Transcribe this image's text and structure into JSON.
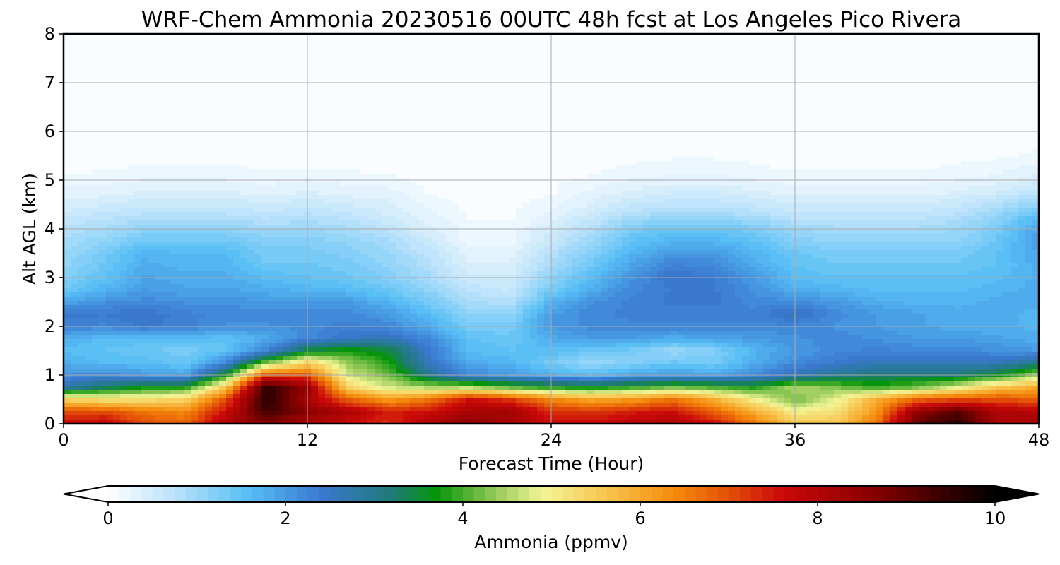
{
  "chart_data": {
    "type": "heatmap",
    "title": "WRF-Chem Ammonia  20230516 00UTC 48h fcst at Los Angeles Pico Rivera",
    "xlabel": "Forecast Time (Hour)",
    "ylabel": "Alt AGL (km)",
    "xlim": [
      0,
      48
    ],
    "ylim": [
      0,
      8
    ],
    "x_ticks": [
      "0",
      "12",
      "24",
      "36",
      "48"
    ],
    "y_ticks": [
      "0",
      "1",
      "2",
      "3",
      "4",
      "5",
      "6",
      "7",
      "8"
    ],
    "grid": true,
    "colorbar": {
      "label": "Ammonia  (ppmv)",
      "range": [
        0,
        10
      ],
      "ticks": [
        "0",
        "2",
        "4",
        "6",
        "8",
        "10"
      ],
      "extend": "both",
      "stops": [
        {
          "value": 0,
          "color": "#ffffff"
        },
        {
          "value": 0.8,
          "color": "#b4e0fa"
        },
        {
          "value": 1.6,
          "color": "#56bdf5"
        },
        {
          "value": 2.4,
          "color": "#3a78d0"
        },
        {
          "value": 3.2,
          "color": "#1f7a78"
        },
        {
          "value": 3.7,
          "color": "#06950a"
        },
        {
          "value": 4.4,
          "color": "#9ccc5c"
        },
        {
          "value": 4.9,
          "color": "#f3f596"
        },
        {
          "value": 5.6,
          "color": "#f8c550"
        },
        {
          "value": 6.4,
          "color": "#f58a0a"
        },
        {
          "value": 7.0,
          "color": "#e24f08"
        },
        {
          "value": 7.6,
          "color": "#cb0909"
        },
        {
          "value": 8.6,
          "color": "#8a0000"
        },
        {
          "value": 9.4,
          "color": "#3a0000"
        },
        {
          "value": 10,
          "color": "#000000"
        }
      ]
    },
    "times": [
      0,
      2,
      4,
      6,
      8,
      10,
      12,
      14,
      16,
      18,
      20,
      22,
      24,
      26,
      28,
      30,
      32,
      34,
      36,
      38,
      40,
      42,
      44,
      46,
      48
    ],
    "altitudes": [
      0,
      0.25,
      0.5,
      0.75,
      1.0,
      1.25,
      1.5,
      1.75,
      2.0,
      2.25,
      2.5,
      2.75,
      3.0,
      3.25,
      3.5,
      3.75,
      4.0,
      4.25,
      4.5,
      4.75,
      5.0,
      5.25,
      5.5,
      6.0,
      6.5,
      7.0,
      7.5,
      8.0
    ],
    "values": [
      [
        7.6,
        7.8,
        7.0,
        6.8,
        8.1,
        8.6,
        8.1,
        7.6,
        7.3,
        8.1,
        8.6,
        8.1,
        7.6,
        7.6,
        7.9,
        8.1,
        7.6,
        6.6,
        5.6,
        5.6,
        6.6,
        9.1,
        9.6,
        8.1,
        8.1
      ],
      [
        7.0,
        7.0,
        6.6,
        6.4,
        7.6,
        9.4,
        8.6,
        8.1,
        7.4,
        7.6,
        8.1,
        8.3,
        7.3,
        7.2,
        7.4,
        7.6,
        6.8,
        5.9,
        5.0,
        5.2,
        6.2,
        8.4,
        9.1,
        8.1,
        7.9
      ],
      [
        5.4,
        5.2,
        5.2,
        5.4,
        7.0,
        9.6,
        8.1,
        6.8,
        6.2,
        6.6,
        7.6,
        7.2,
        6.4,
        6.0,
        6.2,
        6.6,
        5.9,
        5.0,
        4.2,
        4.8,
        5.9,
        6.8,
        7.0,
        7.0,
        6.8
      ],
      [
        2.8,
        3.3,
        3.7,
        3.8,
        5.6,
        9.6,
        8.4,
        5.4,
        4.7,
        4.5,
        4.5,
        4.1,
        3.8,
        3.7,
        3.9,
        4.2,
        4.0,
        3.8,
        4.5,
        4.3,
        3.9,
        4.2,
        4.8,
        5.6,
        6.0
      ],
      [
        2.1,
        2.2,
        2.0,
        1.9,
        3.7,
        7.0,
        6.9,
        4.7,
        4.2,
        3.0,
        2.2,
        2.0,
        1.8,
        1.6,
        1.9,
        2.0,
        1.9,
        2.2,
        2.6,
        3.0,
        3.2,
        3.2,
        3.2,
        3.6,
        4.5
      ],
      [
        1.8,
        1.6,
        1.6,
        1.4,
        2.2,
        4.2,
        5.4,
        4.4,
        3.8,
        2.5,
        1.8,
        1.7,
        1.3,
        1.0,
        1.2,
        1.4,
        1.3,
        1.8,
        2.2,
        2.4,
        2.6,
        2.6,
        2.6,
        2.6,
        3.0
      ],
      [
        1.6,
        1.5,
        1.4,
        1.3,
        1.5,
        2.3,
        3.5,
        3.8,
        3.5,
        2.4,
        1.6,
        1.5,
        1.6,
        1.4,
        1.3,
        1.0,
        1.2,
        1.7,
        2.0,
        2.2,
        2.3,
        2.2,
        2.2,
        2.1,
        2.0
      ],
      [
        1.8,
        1.6,
        1.6,
        1.6,
        1.5,
        1.8,
        2.2,
        2.5,
        2.6,
        2.2,
        1.5,
        1.4,
        1.8,
        2.0,
        2.0,
        1.8,
        1.9,
        2.0,
        2.1,
        2.2,
        2.1,
        2.0,
        2.0,
        1.9,
        1.8
      ],
      [
        2.3,
        2.2,
        2.4,
        2.3,
        2.1,
        2.1,
        2.2,
        2.3,
        2.2,
        1.8,
        1.3,
        1.3,
        2.0,
        2.2,
        2.2,
        2.2,
        2.2,
        2.2,
        2.2,
        2.1,
        2.0,
        1.9,
        1.8,
        1.8,
        1.7
      ],
      [
        2.4,
        2.4,
        2.5,
        2.3,
        2.2,
        2.2,
        2.2,
        2.2,
        2.0,
        1.6,
        1.1,
        1.1,
        2.0,
        2.2,
        2.3,
        2.3,
        2.3,
        2.3,
        2.6,
        2.2,
        2.0,
        1.9,
        1.8,
        1.8,
        1.7
      ],
      [
        1.9,
        2.1,
        2.2,
        2.1,
        2.1,
        2.0,
        2.0,
        2.0,
        1.7,
        1.3,
        0.9,
        0.8,
        1.7,
        2.1,
        2.3,
        2.4,
        2.4,
        2.2,
        2.2,
        2.0,
        1.8,
        1.7,
        1.7,
        1.8,
        1.8
      ],
      [
        1.4,
        1.7,
        2.0,
        1.9,
        1.9,
        1.8,
        1.7,
        1.6,
        1.4,
        1.1,
        0.7,
        0.6,
        1.3,
        1.8,
        2.2,
        2.4,
        2.4,
        2.1,
        1.8,
        1.7,
        1.6,
        1.6,
        1.6,
        1.7,
        1.8
      ],
      [
        1.2,
        1.5,
        1.9,
        1.8,
        1.8,
        1.6,
        1.5,
        1.4,
        1.2,
        0.9,
        0.5,
        0.5,
        1.1,
        1.6,
        2.1,
        2.5,
        2.4,
        2.0,
        1.6,
        1.5,
        1.5,
        1.5,
        1.5,
        1.6,
        1.8
      ],
      [
        1.1,
        1.4,
        1.8,
        1.7,
        1.7,
        1.4,
        1.4,
        1.3,
        1.1,
        0.8,
        0.4,
        0.4,
        0.9,
        1.4,
        1.9,
        2.3,
        2.2,
        1.8,
        1.5,
        1.4,
        1.4,
        1.4,
        1.4,
        1.5,
        1.8
      ],
      [
        1.0,
        1.3,
        1.7,
        1.6,
        1.6,
        1.3,
        1.3,
        1.2,
        1.0,
        0.7,
        0.3,
        0.3,
        0.8,
        1.2,
        1.7,
        2.0,
        2.0,
        1.7,
        1.4,
        1.3,
        1.3,
        1.3,
        1.3,
        1.5,
        1.9
      ],
      [
        0.9,
        1.1,
        1.4,
        1.4,
        1.4,
        1.2,
        1.2,
        1.1,
        0.9,
        0.5,
        0.2,
        0.2,
        0.6,
        1.0,
        1.5,
        1.7,
        1.7,
        1.5,
        1.2,
        1.1,
        1.1,
        1.1,
        1.1,
        1.4,
        2.0
      ],
      [
        0.8,
        0.9,
        1.1,
        1.1,
        1.1,
        1.0,
        1.0,
        0.9,
        0.7,
        0.4,
        0.2,
        0.2,
        0.5,
        0.8,
        1.3,
        1.4,
        1.4,
        1.3,
        1.0,
        0.9,
        0.9,
        0.9,
        1.0,
        1.3,
        1.9
      ],
      [
        0.6,
        0.7,
        0.8,
        0.8,
        0.8,
        0.7,
        0.8,
        0.7,
        0.5,
        0.3,
        0.1,
        0.1,
        0.3,
        0.6,
        0.9,
        1.0,
        1.0,
        0.9,
        0.7,
        0.7,
        0.7,
        0.7,
        0.8,
        1.1,
        1.6
      ],
      [
        0.4,
        0.5,
        0.6,
        0.6,
        0.6,
        0.5,
        0.6,
        0.5,
        0.4,
        0.2,
        0.1,
        0.1,
        0.2,
        0.4,
        0.6,
        0.7,
        0.7,
        0.6,
        0.5,
        0.5,
        0.5,
        0.5,
        0.6,
        0.8,
        1.1
      ],
      [
        0.3,
        0.3,
        0.4,
        0.4,
        0.4,
        0.3,
        0.4,
        0.3,
        0.3,
        0.1,
        0.05,
        0.05,
        0.1,
        0.3,
        0.4,
        0.5,
        0.5,
        0.4,
        0.3,
        0.3,
        0.3,
        0.3,
        0.4,
        0.5,
        0.7
      ],
      [
        0.15,
        0.2,
        0.25,
        0.25,
        0.25,
        0.2,
        0.25,
        0.2,
        0.15,
        0.1,
        0.05,
        0.05,
        0.1,
        0.15,
        0.25,
        0.3,
        0.3,
        0.25,
        0.2,
        0.2,
        0.2,
        0.2,
        0.25,
        0.3,
        0.45
      ],
      [
        0.1,
        0.1,
        0.15,
        0.15,
        0.15,
        0.1,
        0.1,
        0.1,
        0.1,
        0.05,
        0.03,
        0.03,
        0.05,
        0.1,
        0.15,
        0.2,
        0.2,
        0.15,
        0.1,
        0.1,
        0.1,
        0.1,
        0.15,
        0.2,
        0.3
      ],
      [
        0.06,
        0.06,
        0.08,
        0.08,
        0.08,
        0.06,
        0.06,
        0.06,
        0.06,
        0.04,
        0.03,
        0.03,
        0.04,
        0.06,
        0.08,
        0.1,
        0.1,
        0.08,
        0.06,
        0.06,
        0.06,
        0.06,
        0.08,
        0.1,
        0.15
      ],
      [
        0.04,
        0.04,
        0.05,
        0.05,
        0.05,
        0.04,
        0.04,
        0.04,
        0.04,
        0.03,
        0.03,
        0.03,
        0.03,
        0.04,
        0.05,
        0.06,
        0.06,
        0.05,
        0.04,
        0.04,
        0.04,
        0.04,
        0.05,
        0.06,
        0.08
      ],
      [
        0.03,
        0.03,
        0.04,
        0.04,
        0.04,
        0.03,
        0.03,
        0.03,
        0.03,
        0.03,
        0.03,
        0.03,
        0.03,
        0.03,
        0.04,
        0.04,
        0.04,
        0.04,
        0.03,
        0.03,
        0.03,
        0.03,
        0.04,
        0.04,
        0.05
      ],
      [
        0.03,
        0.03,
        0.03,
        0.03,
        0.03,
        0.03,
        0.03,
        0.03,
        0.03,
        0.03,
        0.03,
        0.03,
        0.03,
        0.03,
        0.03,
        0.03,
        0.03,
        0.03,
        0.03,
        0.03,
        0.03,
        0.03,
        0.03,
        0.03,
        0.04
      ],
      [
        0.03,
        0.03,
        0.03,
        0.03,
        0.03,
        0.03,
        0.03,
        0.03,
        0.03,
        0.03,
        0.03,
        0.03,
        0.03,
        0.03,
        0.03,
        0.03,
        0.03,
        0.03,
        0.03,
        0.03,
        0.03,
        0.03,
        0.03,
        0.03,
        0.03
      ],
      [
        0.03,
        0.03,
        0.03,
        0.03,
        0.03,
        0.03,
        0.03,
        0.03,
        0.03,
        0.03,
        0.03,
        0.03,
        0.03,
        0.03,
        0.03,
        0.03,
        0.03,
        0.03,
        0.03,
        0.03,
        0.03,
        0.03,
        0.03,
        0.03,
        0.03
      ]
    ]
  }
}
